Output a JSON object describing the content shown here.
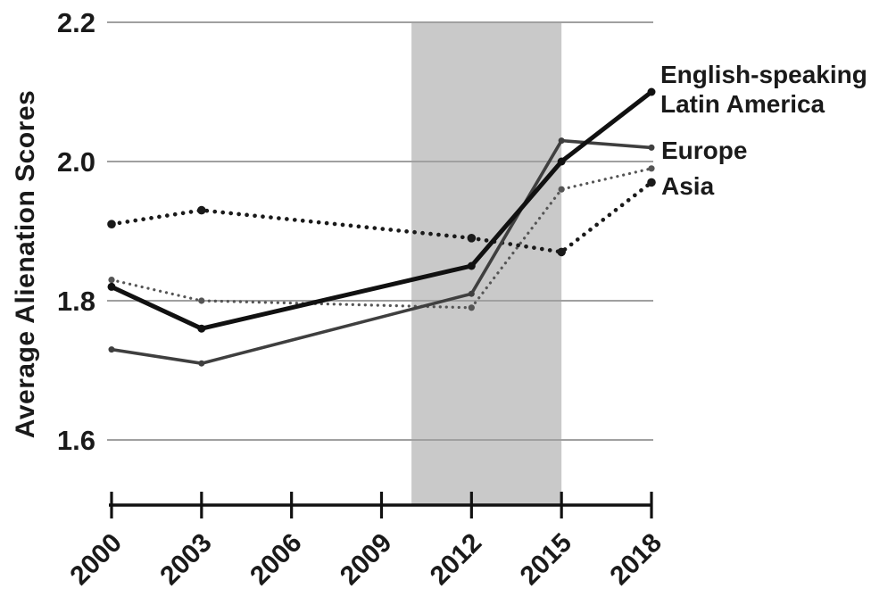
{
  "figure": {
    "background": "#ffffff",
    "text_color": "#1a1a1a",
    "gridline_color": "#a0a0a0",
    "axis_color": "#111111"
  },
  "chart_data": {
    "type": "line",
    "title": "",
    "xlabel": "",
    "ylabel": "Average Alienation Scores",
    "x": [
      2000,
      2003,
      2012,
      2015,
      2018
    ],
    "x_tick_labels": [
      "2000",
      "2003",
      "2006",
      "2009",
      "2012",
      "2015",
      "2018"
    ],
    "y_ticks": [
      2.2,
      2.0,
      1.8,
      1.6
    ],
    "y_tick_labels": [
      "2.2",
      "2.0",
      "1.8",
      "1.6"
    ],
    "xlim": [
      2000,
      2018
    ],
    "ylim": [
      1.5,
      2.2
    ],
    "grid": "horizontal",
    "legend_position": "direct-labels-right",
    "shaded_band": {
      "x_start": 2010,
      "x_end": 2015,
      "color": "#c9c9c9"
    },
    "series": [
      {
        "name": "English-speaking",
        "color": "#111111",
        "line_style": "solid-thick",
        "values": [
          1.82,
          1.76,
          1.85,
          2.0,
          2.1
        ]
      },
      {
        "name": "Latin America",
        "color": "#555555",
        "line_style": "dotted-fine",
        "values": [
          1.83,
          1.8,
          1.79,
          1.96,
          1.99
        ]
      },
      {
        "name": "Europe",
        "color": "#3f3f3f",
        "line_style": "solid",
        "values": [
          1.73,
          1.71,
          1.81,
          2.03,
          2.02
        ]
      },
      {
        "name": "Asia",
        "color": "#1a1a1a",
        "line_style": "dotted-bold",
        "values": [
          1.91,
          1.93,
          1.89,
          1.87,
          1.97
        ]
      }
    ]
  }
}
